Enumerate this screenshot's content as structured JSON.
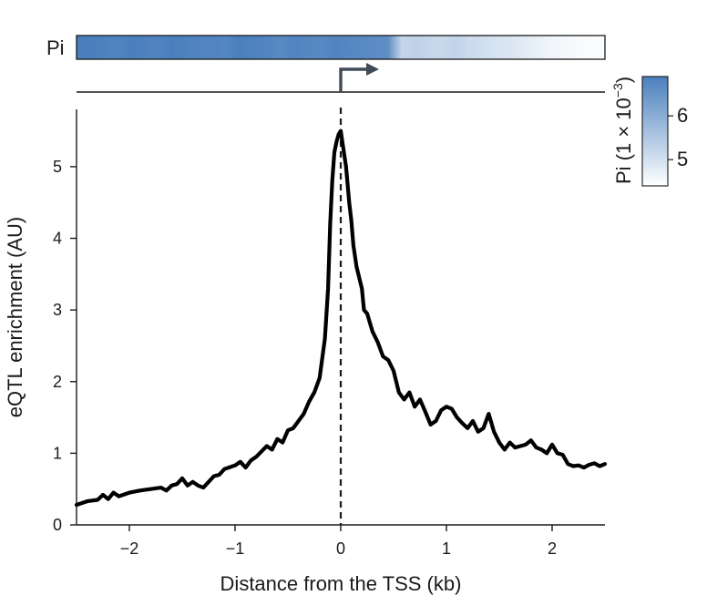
{
  "chart_data": {
    "type": "line",
    "xlabel": "Distance from the TSS (kb)",
    "ylabel": "eQTL enrichment (AU)",
    "xlim": [
      -2.5,
      2.5
    ],
    "ylim": [
      0,
      5.8
    ],
    "xticks": [
      -2,
      -1,
      0,
      1,
      2
    ],
    "xtick_labels": [
      "−2",
      "−1",
      "0",
      "1",
      "2"
    ],
    "yticks": [
      0,
      1,
      2,
      3,
      4,
      5
    ],
    "ytick_labels": [
      "0",
      "1",
      "2",
      "3",
      "4",
      "5"
    ],
    "tss_marker_x": 0,
    "grid": false,
    "series": [
      {
        "color": "#000000",
        "x": [
          -2.5,
          -2.4,
          -2.3,
          -2.25,
          -2.2,
          -2.15,
          -2.1,
          -2.0,
          -1.9,
          -1.8,
          -1.7,
          -1.65,
          -1.6,
          -1.55,
          -1.5,
          -1.45,
          -1.4,
          -1.35,
          -1.3,
          -1.2,
          -1.15,
          -1.1,
          -1.0,
          -0.95,
          -0.9,
          -0.85,
          -0.8,
          -0.7,
          -0.65,
          -0.6,
          -0.55,
          -0.5,
          -0.45,
          -0.4,
          -0.35,
          -0.3,
          -0.25,
          -0.2,
          -0.15,
          -0.12,
          -0.1,
          -0.08,
          -0.06,
          -0.04,
          -0.02,
          0.0,
          0.02,
          0.05,
          0.08,
          0.1,
          0.12,
          0.15,
          0.2,
          0.22,
          0.25,
          0.3,
          0.35,
          0.4,
          0.45,
          0.5,
          0.55,
          0.6,
          0.65,
          0.7,
          0.75,
          0.8,
          0.85,
          0.9,
          0.95,
          1.0,
          1.05,
          1.1,
          1.15,
          1.2,
          1.25,
          1.3,
          1.35,
          1.4,
          1.45,
          1.5,
          1.55,
          1.6,
          1.65,
          1.7,
          1.75,
          1.8,
          1.85,
          1.9,
          1.95,
          2.0,
          2.05,
          2.1,
          2.15,
          2.2,
          2.25,
          2.3,
          2.35,
          2.4,
          2.45,
          2.5
        ],
        "y": [
          0.28,
          0.33,
          0.35,
          0.42,
          0.36,
          0.45,
          0.4,
          0.45,
          0.48,
          0.5,
          0.52,
          0.48,
          0.55,
          0.57,
          0.65,
          0.55,
          0.6,
          0.55,
          0.52,
          0.68,
          0.7,
          0.78,
          0.83,
          0.88,
          0.8,
          0.9,
          0.95,
          1.1,
          1.05,
          1.2,
          1.15,
          1.32,
          1.35,
          1.45,
          1.55,
          1.72,
          1.85,
          2.05,
          2.6,
          3.3,
          4.2,
          4.8,
          5.2,
          5.35,
          5.45,
          5.5,
          5.3,
          5.0,
          4.5,
          4.25,
          3.9,
          3.6,
          3.3,
          3.0,
          2.95,
          2.7,
          2.55,
          2.35,
          2.3,
          2.15,
          1.85,
          1.75,
          1.85,
          1.65,
          1.75,
          1.58,
          1.4,
          1.45,
          1.6,
          1.65,
          1.62,
          1.5,
          1.42,
          1.35,
          1.45,
          1.3,
          1.35,
          1.55,
          1.3,
          1.15,
          1.05,
          1.15,
          1.08,
          1.1,
          1.12,
          1.18,
          1.08,
          1.05,
          1.0,
          1.12,
          1.0,
          0.98,
          0.85,
          0.82,
          0.83,
          0.8,
          0.84,
          0.86,
          0.82,
          0.85
        ]
      }
    ],
    "pi_track": {
      "label": "Pi",
      "values_1e-3": [
        6.9,
        6.9,
        6.85,
        6.8,
        6.9,
        6.85,
        6.8,
        6.9,
        6.85,
        6.8,
        6.8,
        6.75,
        6.9,
        6.85,
        6.8,
        6.7,
        6.8,
        6.75,
        6.7,
        6.8,
        6.75,
        6.7,
        6.65,
        6.6,
        5.2,
        5.3,
        5.2,
        5.15,
        5.25,
        5.1,
        5.05,
        4.95,
        4.9,
        4.8,
        4.7,
        4.6,
        4.55,
        4.5,
        4.45,
        4.45
      ]
    },
    "colorbar": {
      "label": "Pi (1 × 10",
      "label_exponent": "−3",
      "label_close": ")",
      "range": [
        4.4,
        6.9
      ],
      "ticks": [
        5,
        6
      ],
      "tick_labels": [
        "5",
        "6"
      ],
      "color_low": "#ffffff",
      "color_high": "#4a7fbd"
    }
  }
}
